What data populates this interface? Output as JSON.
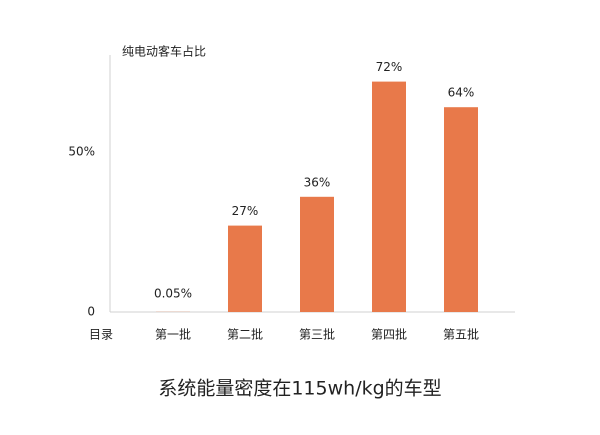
{
  "chart_data": {
    "type": "bar",
    "title": "系统能量密度在115wh/kg的车型",
    "y_label": "纯电动客车占比",
    "x_label": "目录",
    "categories": [
      "第一批",
      "第二批",
      "第三批",
      "第四批",
      "第五批"
    ],
    "values": [
      0.05,
      27,
      36,
      72,
      64
    ],
    "value_labels": [
      "0.05%",
      "27%",
      "36%",
      "72%",
      "64%"
    ],
    "color": "#e8794a",
    "ylim": [
      0,
      80
    ],
    "yticks": [
      0,
      {
        "value": 50,
        "label": "50%"
      }
    ],
    "grid": false
  }
}
